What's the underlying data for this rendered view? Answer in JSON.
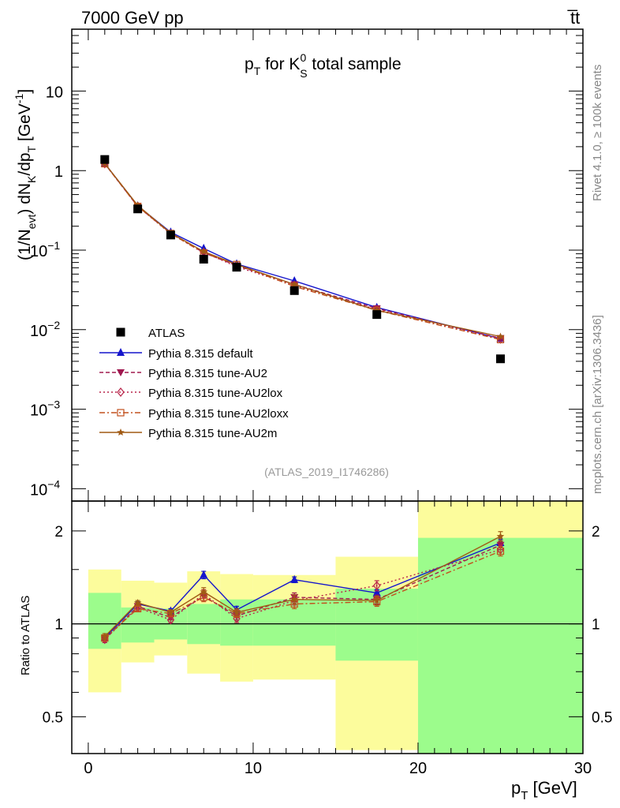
{
  "header": {
    "left": "7000 GeV pp",
    "right": "t̅t"
  },
  "side_labels": {
    "rivet": "Rivet 4.1.0, ≥ 100k events",
    "mcplots": "mcplots.cern.ch [arXiv:1306.3436]"
  },
  "colors": {
    "data": "#000000",
    "default": "#1515cc",
    "au2": "#a0184f",
    "au2lox": "#b8254a",
    "au2loxx": "#c2501e",
    "au2m": "#a05a14",
    "band_inner": "#9cfc8c",
    "band_outer": "#fcfc9c"
  },
  "chart_data": [
    {
      "type": "line",
      "title": "p_T for K_S^0 total sample",
      "title_parts": {
        "p": "p",
        "p_sub": "T",
        "mid": " for K",
        "k_sup": "0",
        "k_sub": "S",
        "end": " total sample"
      },
      "ylabel_parts": {
        "a": "(1/N",
        "a_sub": "evt",
        "b": ") dN",
        "b_sub": "K",
        "c": "/dp",
        "c_sub": "T",
        "d": " [GeV",
        "d_sup": "-1",
        "e": "]"
      },
      "yscale": "log",
      "ylim": [
        7e-05,
        60
      ],
      "xlim": [
        -1,
        30
      ],
      "y_ticks": [
        {
          "value": 10,
          "base": "10",
          "exp": ""
        },
        {
          "value": 1,
          "base": "1",
          "exp": ""
        },
        {
          "value": 0.1,
          "base": "10",
          "exp": "−1"
        },
        {
          "value": 0.01,
          "base": "10",
          "exp": "−2"
        },
        {
          "value": 0.001,
          "base": "10",
          "exp": "−3"
        },
        {
          "value": 0.0001,
          "base": "10",
          "exp": "−4"
        }
      ],
      "watermark": "(ATLAS_2019_I1746286)",
      "x": [
        1,
        3,
        5,
        7,
        9,
        12.5,
        17.5,
        25
      ],
      "data": {
        "name": "ATLAS",
        "values": [
          1.38,
          0.33,
          0.155,
          0.077,
          0.061,
          0.031,
          0.0155,
          0.0043
        ]
      },
      "series": [
        {
          "key": "default",
          "name": "Pythia 8.315 default",
          "dash": "",
          "marker": "triangle-up",
          "values": [
            1.23,
            0.36,
            0.168,
            0.105,
            0.067,
            0.041,
            0.019,
            0.0077
          ]
        },
        {
          "key": "au2",
          "name": "Pythia 8.315 tune-AU2",
          "dash": "5,3",
          "marker": "triangle-down",
          "values": [
            1.22,
            0.355,
            0.163,
            0.093,
            0.064,
            0.037,
            0.0185,
            0.0078
          ]
        },
        {
          "key": "au2lox",
          "name": "Pythia 8.315 tune-AU2lox",
          "dash": "2,3",
          "marker": "diamond-open",
          "values": [
            1.22,
            0.355,
            0.16,
            0.094,
            0.062,
            0.036,
            0.018,
            0.0076
          ]
        },
        {
          "key": "au2loxx",
          "name": "Pythia 8.315 tune-AU2loxx",
          "dash": "7,3,2,3",
          "marker": "square-open",
          "values": [
            1.22,
            0.355,
            0.162,
            0.092,
            0.066,
            0.035,
            0.0175,
            0.0075
          ]
        },
        {
          "key": "au2m",
          "name": "Pythia 8.315 tune-AU2m",
          "dash": "",
          "marker": "star",
          "values": [
            1.23,
            0.365,
            0.164,
            0.096,
            0.066,
            0.037,
            0.0175,
            0.0082
          ]
        }
      ]
    },
    {
      "type": "line",
      "ylabel": "Ratio to ATLAS",
      "xlabel_parts": {
        "a": "p",
        "a_sub": "T",
        "b": " [GeV]"
      },
      "yscale": "log",
      "ylim": [
        0.38,
        2.5
      ],
      "xlim": [
        -1,
        30
      ],
      "y_ticks": [
        {
          "value": 2,
          "label": "2"
        },
        {
          "value": 1,
          "label": "1"
        },
        {
          "value": 0.5,
          "label": "0.5"
        }
      ],
      "x_ticks": [
        {
          "value": 0,
          "label": "0"
        },
        {
          "value": 10,
          "label": "10"
        },
        {
          "value": 20,
          "label": "20"
        },
        {
          "value": 30,
          "label": "30"
        }
      ],
      "bands": [
        {
          "x0": 0,
          "x1": 2,
          "outer": [
            0.6,
            1.5
          ],
          "inner": [
            0.83,
            1.26
          ]
        },
        {
          "x0": 2,
          "x1": 4,
          "outer": [
            0.75,
            1.38
          ],
          "inner": [
            0.87,
            1.13
          ]
        },
        {
          "x0": 4,
          "x1": 6,
          "outer": [
            0.79,
            1.36
          ],
          "inner": [
            0.89,
            1.12
          ]
        },
        {
          "x0": 6,
          "x1": 8,
          "outer": [
            0.69,
            1.48
          ],
          "inner": [
            0.86,
            1.16
          ]
        },
        {
          "x0": 8,
          "x1": 10,
          "outer": [
            0.65,
            1.45
          ],
          "inner": [
            0.85,
            1.2
          ]
        },
        {
          "x0": 10,
          "x1": 15,
          "outer": [
            0.66,
            1.44
          ],
          "inner": [
            0.85,
            1.2
          ]
        },
        {
          "x0": 15,
          "x1": 20,
          "outer": [
            0.39,
            1.65
          ],
          "inner": [
            0.76,
            1.3
          ]
        },
        {
          "x0": 20,
          "x1": 30,
          "outer": [
            0.35,
            2.6
          ],
          "inner": [
            0.35,
            1.9
          ]
        }
      ],
      "x": [
        1,
        3,
        5,
        7,
        9,
        12.5,
        17.5,
        25
      ],
      "series": [
        {
          "key": "default",
          "values": [
            0.9,
            1.16,
            1.1,
            1.44,
            1.11,
            1.39,
            1.26,
            1.83
          ],
          "err": [
            0.02,
            0.02,
            0.02,
            0.04,
            0.03,
            0.03,
            0.03,
            0.05
          ]
        },
        {
          "key": "au2",
          "values": [
            0.89,
            1.14,
            1.05,
            1.23,
            1.06,
            1.22,
            1.2,
            1.8
          ],
          "err": [
            0.02,
            0.02,
            0.02,
            0.04,
            0.03,
            0.04,
            0.04,
            0.06
          ]
        },
        {
          "key": "au2lox",
          "values": [
            0.89,
            1.13,
            1.03,
            1.25,
            1.04,
            1.19,
            1.33,
            1.74
          ],
          "err": [
            0.02,
            0.02,
            0.02,
            0.04,
            0.03,
            0.04,
            0.05,
            0.06
          ]
        },
        {
          "key": "au2loxx",
          "values": [
            0.9,
            1.12,
            1.08,
            1.22,
            1.08,
            1.16,
            1.18,
            1.72
          ],
          "err": [
            0.02,
            0.02,
            0.02,
            0.04,
            0.03,
            0.04,
            0.04,
            0.06
          ]
        },
        {
          "key": "au2m",
          "values": [
            0.91,
            1.17,
            1.09,
            1.27,
            1.09,
            1.2,
            1.19,
            1.92
          ],
          "err": [
            0.02,
            0.02,
            0.02,
            0.04,
            0.03,
            0.04,
            0.04,
            0.07
          ]
        }
      ]
    }
  ]
}
